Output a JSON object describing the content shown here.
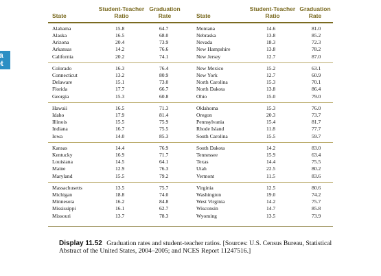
{
  "side_tab": {
    "line1": "ta",
    "line2": "et"
  },
  "headers": {
    "left": {
      "state": "State",
      "ratio": "Student-Teacher\nRatio",
      "grad": "Graduation\nRate"
    },
    "right": {
      "state": "State",
      "ratio": "Student-Teacher\nRatio",
      "grad": "Graduation\nRate"
    }
  },
  "groups": [
    {
      "left": [
        {
          "state": "Alabama",
          "ratio": "15.8",
          "grad": "64.7"
        },
        {
          "state": "Alaska",
          "ratio": "16.5",
          "grad": "68.0"
        },
        {
          "state": "Arizona",
          "ratio": "20.4",
          "grad": "73.9"
        },
        {
          "state": "Arkansas",
          "ratio": "14.2",
          "grad": "76.6"
        },
        {
          "state": "California",
          "ratio": "20.2",
          "grad": "74.1"
        }
      ],
      "right": [
        {
          "state": "Montana",
          "ratio": "14.6",
          "grad": "81.0"
        },
        {
          "state": "Nebraska",
          "ratio": "13.8",
          "grad": "85.2"
        },
        {
          "state": "Nevada",
          "ratio": "18.3",
          "grad": "72.3"
        },
        {
          "state": "New Hampshire",
          "ratio": "13.8",
          "grad": "78.2"
        },
        {
          "state": "New Jersey",
          "ratio": "12.7",
          "grad": "87.0"
        }
      ]
    },
    {
      "left": [
        {
          "state": "Colorado",
          "ratio": "16.3",
          "grad": "76.4"
        },
        {
          "state": "Connecticut",
          "ratio": "13.2",
          "grad": "80.9"
        },
        {
          "state": "Delaware",
          "ratio": "15.1",
          "grad": "73.0"
        },
        {
          "state": "Florida",
          "ratio": "17.7",
          "grad": "66.7"
        },
        {
          "state": "Georgia",
          "ratio": "15.3",
          "grad": "60.8"
        }
      ],
      "right": [
        {
          "state": "New Mexico",
          "ratio": "15.2",
          "grad": "63.1"
        },
        {
          "state": "New York",
          "ratio": "12.7",
          "grad": "60.9"
        },
        {
          "state": "North Carolina",
          "ratio": "15.3",
          "grad": "70.1"
        },
        {
          "state": "North Dakota",
          "ratio": "13.8",
          "grad": "86.4"
        },
        {
          "state": "Ohio",
          "ratio": "15.0",
          "grad": "79.0"
        }
      ]
    },
    {
      "left": [
        {
          "state": "Hawaii",
          "ratio": "16.5",
          "grad": "71.3"
        },
        {
          "state": "Idaho",
          "ratio": "17.9",
          "grad": "81.4"
        },
        {
          "state": "Illinois",
          "ratio": "15.5",
          "grad": "75.9"
        },
        {
          "state": "Indiana",
          "ratio": "16.7",
          "grad": "75.5"
        },
        {
          "state": "Iowa",
          "ratio": "14.0",
          "grad": "85.3"
        }
      ],
      "right": [
        {
          "state": "Oklahoma",
          "ratio": "15.3",
          "grad": "76.0"
        },
        {
          "state": "Oregon",
          "ratio": "20.3",
          "grad": "73.7"
        },
        {
          "state": "Pennsylvania",
          "ratio": "15.4",
          "grad": "81.7"
        },
        {
          "state": "Rhode Island",
          "ratio": "11.8",
          "grad": "77.7"
        },
        {
          "state": "South Carolina",
          "ratio": "15.5",
          "grad": "59.7"
        }
      ]
    },
    {
      "left": [
        {
          "state": "Kansas",
          "ratio": "14.4",
          "grad": "76.9"
        },
        {
          "state": "Kentucky",
          "ratio": "16.9",
          "grad": "71.7"
        },
        {
          "state": "Louisiana",
          "ratio": "14.5",
          "grad": "64.1"
        },
        {
          "state": "Maine",
          "ratio": "12.9",
          "grad": "76.3"
        },
        {
          "state": "Maryland",
          "ratio": "15.5",
          "grad": "79.2"
        }
      ],
      "right": [
        {
          "state": "South Dakota",
          "ratio": "14.2",
          "grad": "83.0"
        },
        {
          "state": "Tennessee",
          "ratio": "15.9",
          "grad": "63.4"
        },
        {
          "state": "Texas",
          "ratio": "14.4",
          "grad": "75.5"
        },
        {
          "state": "Utah",
          "ratio": "22.5",
          "grad": "80.2"
        },
        {
          "state": "Vermont",
          "ratio": "11.5",
          "grad": "83.6"
        }
      ]
    },
    {
      "left": [
        {
          "state": "Massachusetts",
          "ratio": "13.5",
          "grad": "75.7"
        },
        {
          "state": "Michigan",
          "ratio": "18.8",
          "grad": "74.0"
        },
        {
          "state": "Minnesota",
          "ratio": "16.2",
          "grad": "84.8"
        },
        {
          "state": "Mississippi",
          "ratio": "16.1",
          "grad": "62.7"
        },
        {
          "state": "Missouri",
          "ratio": "13.7",
          "grad": "78.3"
        }
      ],
      "right": [
        {
          "state": "Virginia",
          "ratio": "12.5",
          "grad": "80.6"
        },
        {
          "state": "Washington",
          "ratio": "19.0",
          "grad": "74.2"
        },
        {
          "state": "West Virginia",
          "ratio": "14.2",
          "grad": "75.7"
        },
        {
          "state": "Wisconsin",
          "ratio": "14.7",
          "grad": "85.8"
        },
        {
          "state": "Wyoming",
          "ratio": "13.5",
          "grad": "73.9"
        }
      ]
    }
  ],
  "caption": {
    "label": "Display 11.52",
    "text": "Graduation rates and student-teacher ratios. [Sources: U.S. Census Bureau, Statistical Abstract of the United States, 2004–2005; and NCES Report 11247516.]"
  }
}
